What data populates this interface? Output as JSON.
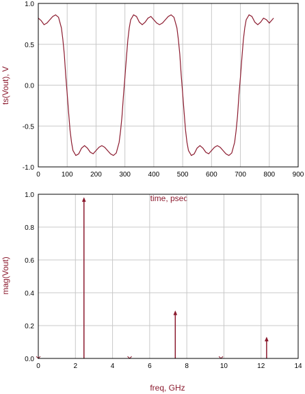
{
  "colors": {
    "trace": "#8b1a2e",
    "grid": "#c8c8c8",
    "frame": "#000000",
    "background": "#ffffff"
  },
  "chart_data": [
    {
      "type": "line",
      "title": "",
      "xlabel": "time, psec",
      "ylabel": "ts(Vout), V",
      "xlim": [
        0,
        900
      ],
      "ylim": [
        -1.0,
        1.0
      ],
      "xticks": [
        0,
        100,
        200,
        300,
        400,
        500,
        600,
        700,
        800,
        900
      ],
      "xtick_labels": [
        "0",
        "100",
        "200",
        "300",
        "400",
        "500",
        "600",
        "700",
        "800",
        "900"
      ],
      "yticks": [
        -1.0,
        -0.5,
        0.0,
        0.5,
        1.0
      ],
      "ytick_labels": [
        "-1.0",
        "-0.5",
        "0.0",
        "0.5",
        "1.0"
      ],
      "grid": true,
      "series": [
        {
          "x": [
            0,
            10,
            20,
            30,
            40,
            50,
            60,
            70,
            80,
            85,
            90,
            95,
            100,
            105,
            110,
            115,
            120,
            130,
            140,
            150,
            160,
            170,
            180,
            190,
            200,
            210,
            220,
            230,
            240,
            250,
            260,
            270,
            280,
            285,
            290,
            295,
            300,
            305,
            310,
            315,
            320,
            330,
            340,
            350,
            360,
            370,
            380,
            390,
            400,
            410,
            420,
            430,
            440,
            450,
            460,
            470,
            480,
            485,
            490,
            495,
            500,
            505,
            510,
            515,
            520,
            530,
            540,
            550,
            560,
            570,
            580,
            590,
            600,
            610,
            620,
            630,
            640,
            650,
            660,
            670,
            680,
            685,
            690,
            695,
            700,
            705,
            710,
            715,
            720,
            730,
            740,
            750,
            760,
            770,
            780,
            790,
            800,
            810,
            815
          ],
          "y": [
            0.82,
            0.79,
            0.74,
            0.76,
            0.8,
            0.84,
            0.86,
            0.83,
            0.7,
            0.56,
            0.38,
            0.12,
            -0.1,
            -0.33,
            -0.55,
            -0.7,
            -0.8,
            -0.86,
            -0.84,
            -0.77,
            -0.74,
            -0.77,
            -0.82,
            -0.84,
            -0.8,
            -0.76,
            -0.74,
            -0.76,
            -0.8,
            -0.84,
            -0.86,
            -0.83,
            -0.7,
            -0.56,
            -0.38,
            -0.12,
            0.1,
            0.33,
            0.55,
            0.7,
            0.8,
            0.86,
            0.84,
            0.77,
            0.74,
            0.77,
            0.82,
            0.84,
            0.8,
            0.76,
            0.74,
            0.76,
            0.8,
            0.84,
            0.86,
            0.83,
            0.7,
            0.56,
            0.38,
            0.12,
            -0.1,
            -0.33,
            -0.55,
            -0.7,
            -0.8,
            -0.86,
            -0.84,
            -0.77,
            -0.74,
            -0.77,
            -0.82,
            -0.84,
            -0.8,
            -0.76,
            -0.74,
            -0.76,
            -0.8,
            -0.84,
            -0.86,
            -0.83,
            -0.7,
            -0.56,
            -0.38,
            -0.12,
            0.1,
            0.33,
            0.55,
            0.7,
            0.8,
            0.86,
            0.84,
            0.77,
            0.74,
            0.77,
            0.82,
            0.8,
            0.76,
            0.8,
            0.82
          ]
        }
      ]
    },
    {
      "type": "bar",
      "title": "",
      "xlabel": "freq, GHz",
      "ylabel": "mag(Vout)",
      "xlim": [
        0,
        14
      ],
      "ylim": [
        0.0,
        1.0
      ],
      "xticks": [
        0,
        2,
        4,
        6,
        8,
        10,
        12,
        14
      ],
      "xtick_labels": [
        "0",
        "2",
        "4",
        "6",
        "8",
        "10",
        "12",
        "14"
      ],
      "yticks": [
        0.0,
        0.2,
        0.4,
        0.6,
        0.8,
        1.0
      ],
      "ytick_labels": [
        "0.0",
        "0.2",
        "0.4",
        "0.6",
        "0.8",
        "1.0"
      ],
      "grid": true,
      "marker": "arrow",
      "series": [
        {
          "x": [
            0.0,
            2.46,
            4.92,
            7.38,
            9.84,
            12.3
          ],
          "values": [
            0.0,
            0.98,
            0.0,
            0.29,
            0.0,
            0.13
          ]
        }
      ]
    }
  ]
}
